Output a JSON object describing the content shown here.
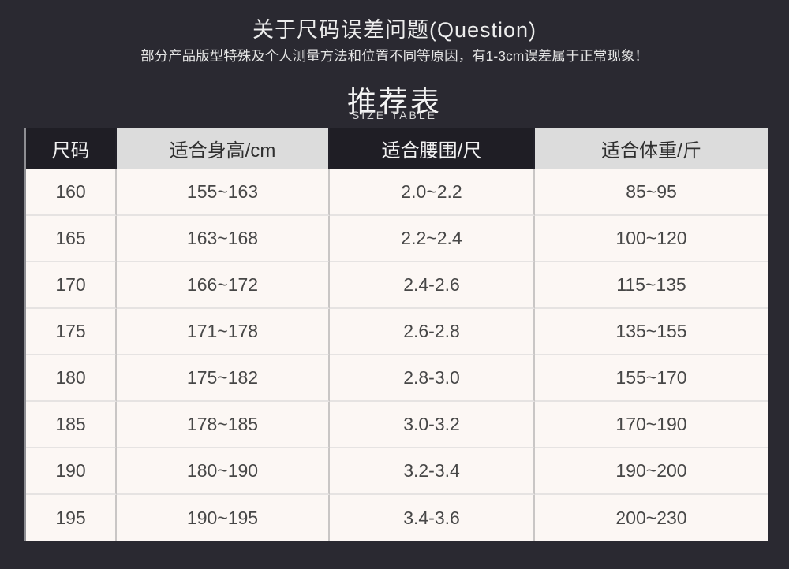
{
  "notice": {
    "title": "关于尺码误差问题(Question)",
    "subtitle": "部分产品版型特殊及个人测量方法和位置不同等原因，有1-3cm误差属于正常现象！"
  },
  "heading": {
    "title": "推荐表",
    "subtitle": "SIZE TABLE"
  },
  "size_table": {
    "columns": [
      {
        "label": "尺码",
        "style": "dark"
      },
      {
        "label": "适合身高/cm",
        "style": "light"
      },
      {
        "label": "适合腰围/尺",
        "style": "dark"
      },
      {
        "label": "适合体重/斤",
        "style": "light"
      }
    ],
    "rows": [
      [
        "160",
        "155~163",
        "2.0~2.2",
        "85~95"
      ],
      [
        "165",
        "163~168",
        "2.2~2.4",
        "100~120"
      ],
      [
        "170",
        "166~172",
        "2.4-2.6",
        "115~135"
      ],
      [
        "175",
        "171~178",
        "2.6-2.8",
        "135~155"
      ],
      [
        "180",
        "175~182",
        "2.8-3.0",
        "155~170"
      ],
      [
        "185",
        "178~185",
        "3.0-3.2",
        "170~190"
      ],
      [
        "190",
        "180~190",
        "3.2-3.4",
        "190~200"
      ],
      [
        "195",
        "190~195",
        "3.4-3.6",
        "200~230"
      ]
    ]
  },
  "colors": {
    "page_background": "#2a2931",
    "header_dark_cell": "#1f1e25",
    "header_light_cell": "#dcdcdc",
    "body_cell": "#fcf7f4",
    "light_text": "#ededed",
    "dark_text": "#474747"
  }
}
